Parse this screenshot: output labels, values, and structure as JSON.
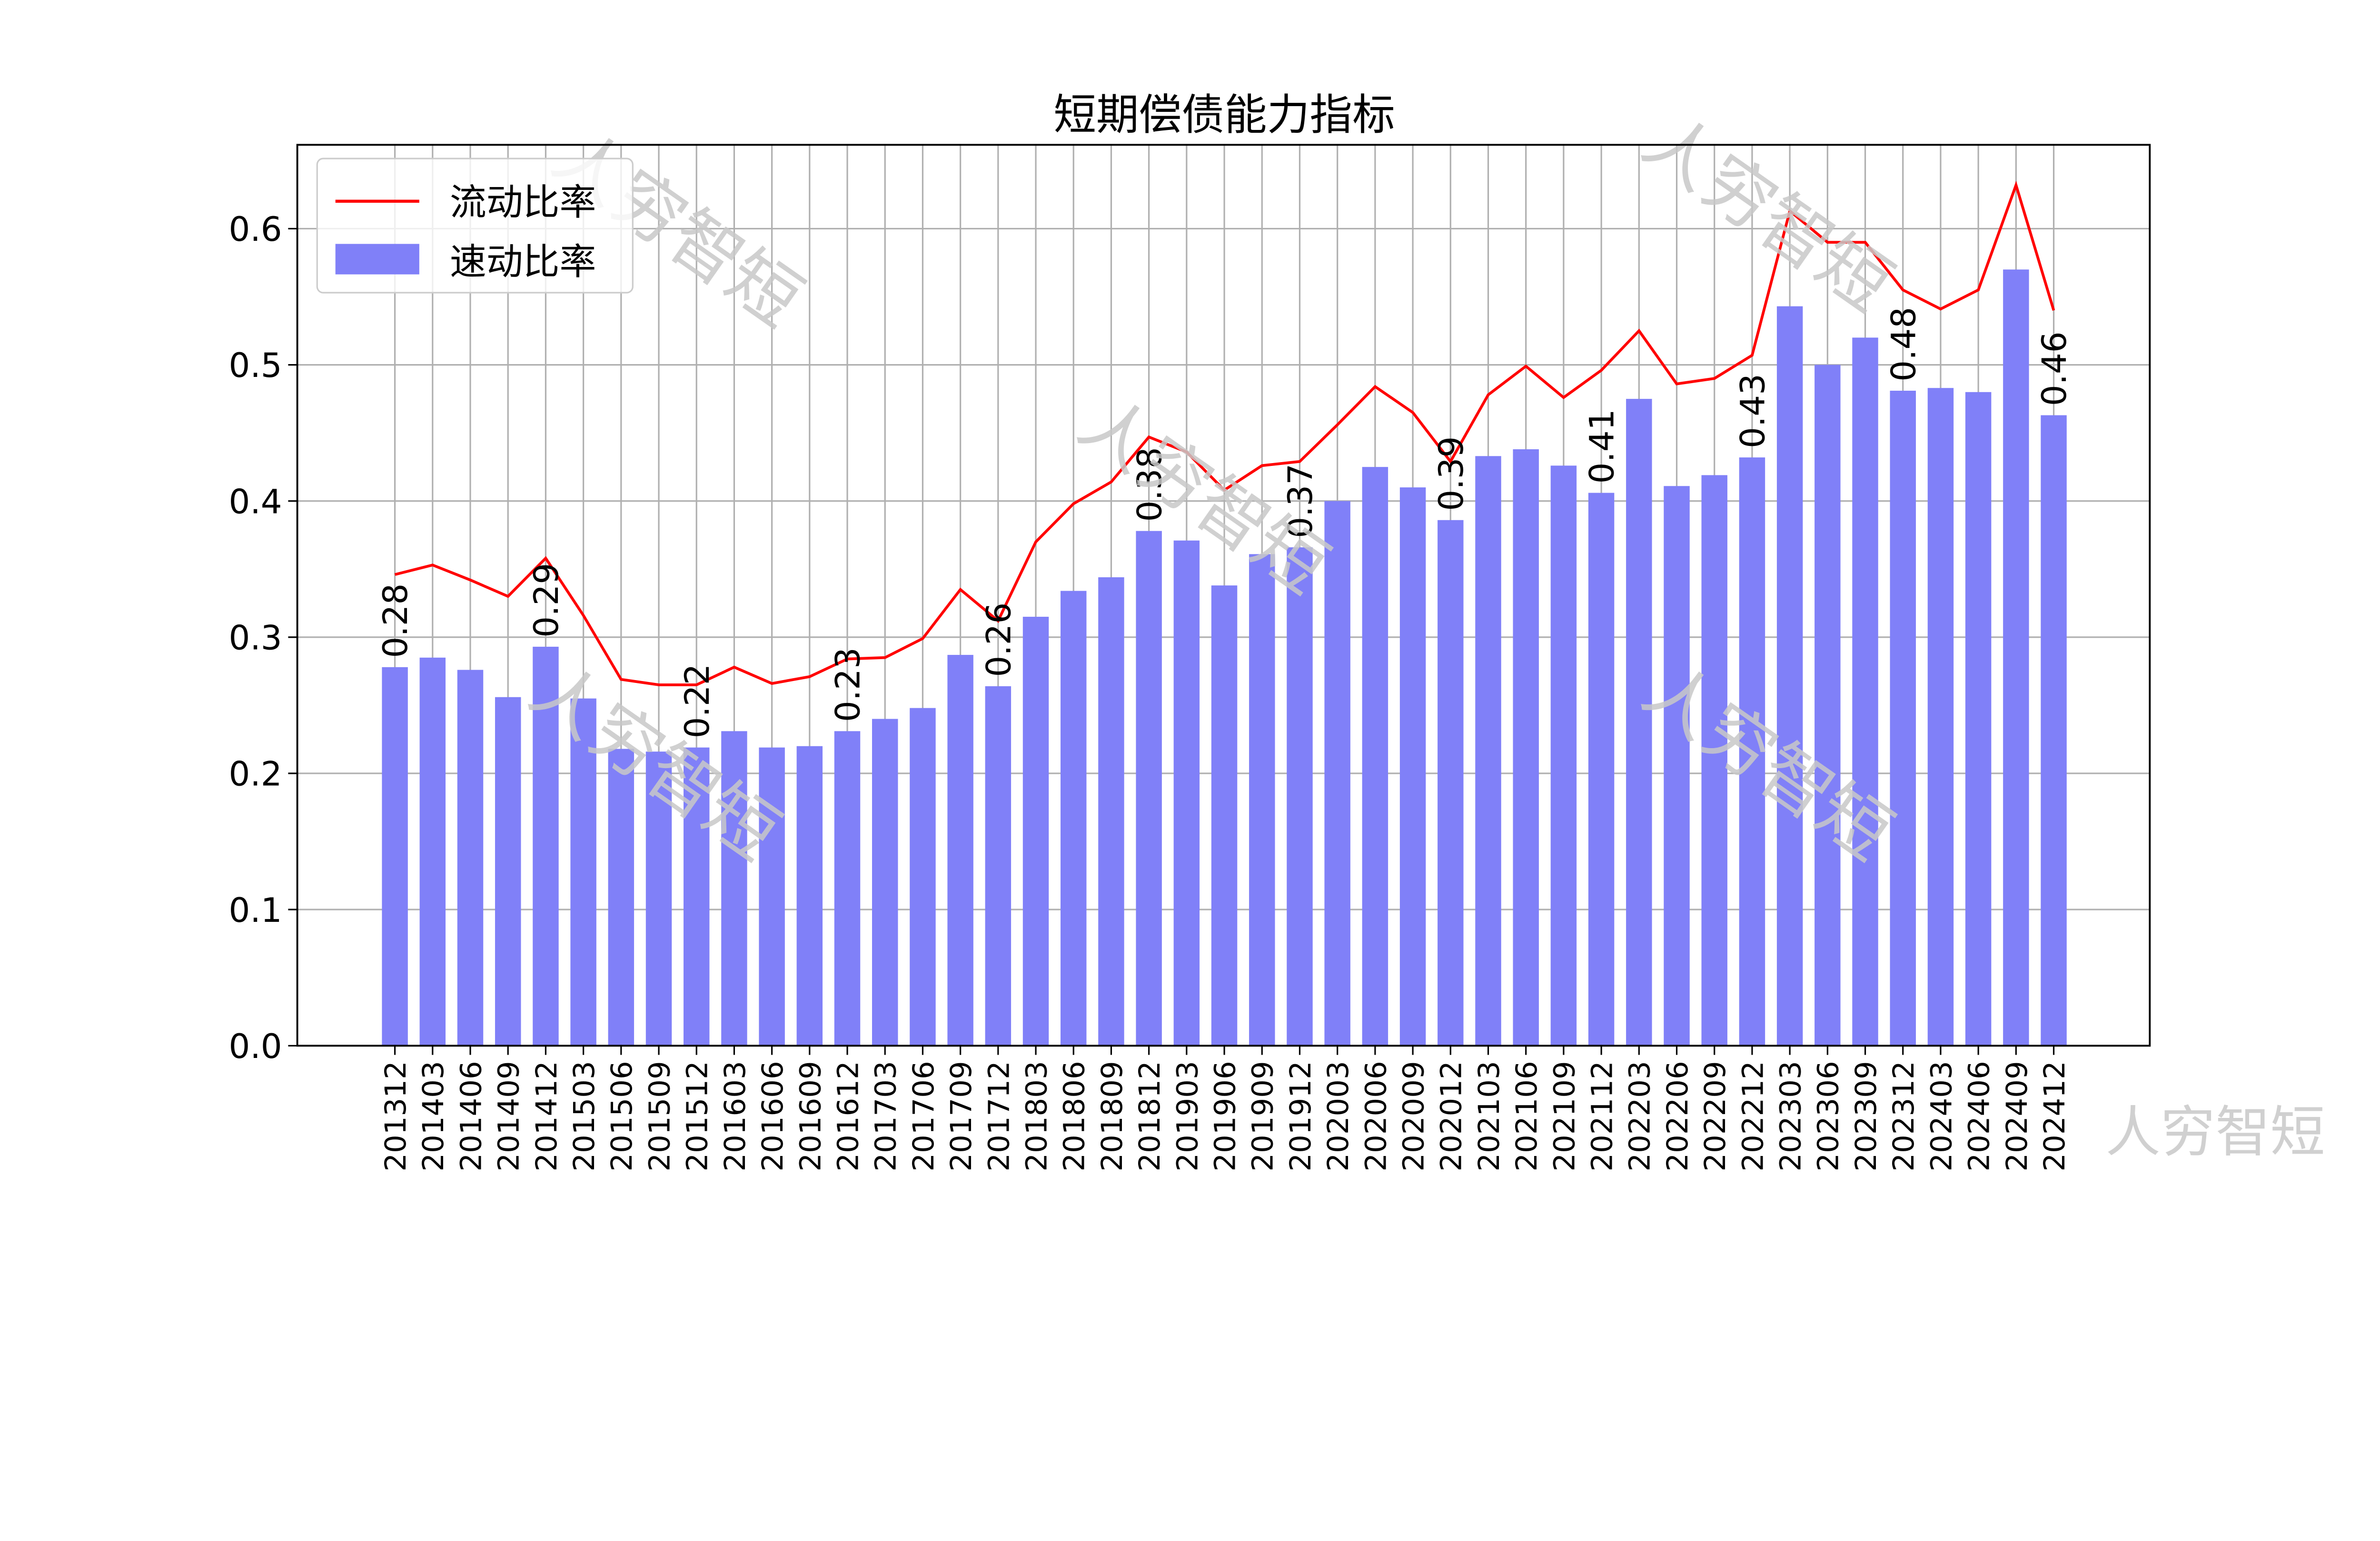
{
  "chart_data": {
    "type": "bar+line",
    "title": "短期偿债能力指标",
    "xlabel": "",
    "ylabel": "",
    "ylim": [
      0,
      0.66
    ],
    "yticks": [
      "0.0",
      "0.1",
      "0.2",
      "0.3",
      "0.4",
      "0.5",
      "0.6"
    ],
    "grid": true,
    "legend_position": "top-left",
    "categories": [
      "201312",
      "201403",
      "201406",
      "201409",
      "201412",
      "201503",
      "201506",
      "201509",
      "201512",
      "201603",
      "201606",
      "201609",
      "201612",
      "201703",
      "201706",
      "201709",
      "201712",
      "201803",
      "201806",
      "201809",
      "201812",
      "201903",
      "201906",
      "201909",
      "201912",
      "202003",
      "202006",
      "202009",
      "202012",
      "202103",
      "202106",
      "202109",
      "202112",
      "202203",
      "202206",
      "202209",
      "202212",
      "202303",
      "202306",
      "202309",
      "202312",
      "202403",
      "202406",
      "202409",
      "202412"
    ],
    "series": [
      {
        "name": "流动比率",
        "kind": "line",
        "color": "#ff0000",
        "values": [
          0.346,
          0.353,
          0.342,
          0.33,
          0.358,
          0.316,
          0.269,
          0.265,
          0.265,
          0.278,
          0.266,
          0.271,
          0.284,
          0.285,
          0.299,
          0.335,
          0.312,
          0.37,
          0.398,
          0.414,
          0.447,
          0.436,
          0.408,
          0.426,
          0.429,
          0.456,
          0.484,
          0.465,
          0.429,
          0.478,
          0.499,
          0.476,
          0.496,
          0.525,
          0.486,
          0.49,
          0.507,
          0.613,
          0.59,
          0.59,
          0.555,
          0.541,
          0.555,
          0.632,
          0.54
        ]
      },
      {
        "name": "速动比率",
        "kind": "bar",
        "color": "#8080f8",
        "values": [
          0.278,
          0.285,
          0.276,
          0.256,
          0.293,
          0.255,
          0.218,
          0.216,
          0.219,
          0.231,
          0.219,
          0.22,
          0.231,
          0.24,
          0.248,
          0.287,
          0.264,
          0.315,
          0.334,
          0.344,
          0.378,
          0.371,
          0.338,
          0.361,
          0.366,
          0.4,
          0.425,
          0.41,
          0.386,
          0.433,
          0.438,
          0.426,
          0.406,
          0.475,
          0.411,
          0.419,
          0.432,
          0.543,
          0.5,
          0.52,
          0.481,
          0.483,
          0.48,
          0.57,
          0.463
        ]
      }
    ],
    "data_labels": [
      {
        "category": "201312",
        "text": "0.28"
      },
      {
        "category": "201412",
        "text": "0.29"
      },
      {
        "category": "201512",
        "text": "0.22"
      },
      {
        "category": "201612",
        "text": "0.23"
      },
      {
        "category": "201712",
        "text": "0.26"
      },
      {
        "category": "201812",
        "text": "0.38"
      },
      {
        "category": "201912",
        "text": "0.37"
      },
      {
        "category": "202012",
        "text": "0.39"
      },
      {
        "category": "202112",
        "text": "0.41"
      },
      {
        "category": "202212",
        "text": "0.43"
      },
      {
        "category": "202312",
        "text": "0.48"
      },
      {
        "category": "202412",
        "text": "0.46"
      }
    ],
    "watermark": "人穷智短"
  }
}
